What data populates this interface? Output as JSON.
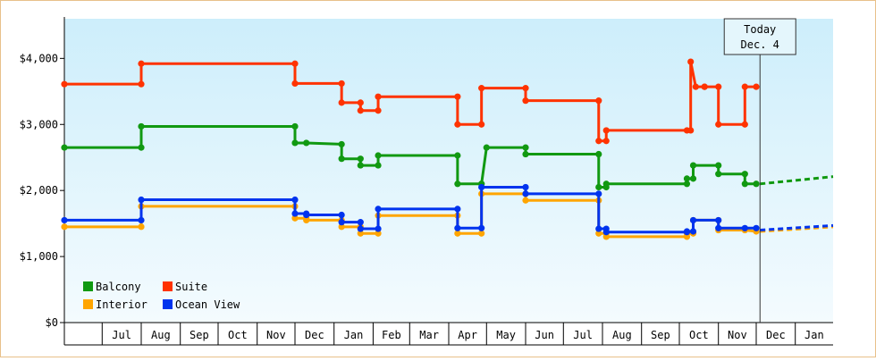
{
  "chart_data": {
    "type": "line",
    "title": "",
    "xlabel": "",
    "ylabel": "",
    "ylim": [
      0,
      4600
    ],
    "y_ticks": [
      {
        "value": 0,
        "label": "$0"
      },
      {
        "value": 1000,
        "label": "$1,000"
      },
      {
        "value": 2000,
        "label": "$2,000"
      },
      {
        "value": 3000,
        "label": "$3,000"
      },
      {
        "value": 4000,
        "label": "$4,000"
      }
    ],
    "x_domain": [
      "2023-06-01",
      "2025-01-31"
    ],
    "x_ticks": [
      {
        "date": "2023-07-01",
        "label": "Jul"
      },
      {
        "date": "2023-08-01",
        "label": "Aug"
      },
      {
        "date": "2023-09-01",
        "label": "Sep"
      },
      {
        "date": "2023-10-01",
        "label": "Oct"
      },
      {
        "date": "2023-11-01",
        "label": "Nov"
      },
      {
        "date": "2023-12-01",
        "label": "Dec"
      },
      {
        "date": "2024-01-01",
        "label": "Jan"
      },
      {
        "date": "2024-02-01",
        "label": "Feb"
      },
      {
        "date": "2024-03-01",
        "label": "Mar"
      },
      {
        "date": "2024-04-01",
        "label": "Apr"
      },
      {
        "date": "2024-05-01",
        "label": "May"
      },
      {
        "date": "2024-06-01",
        "label": "Jun"
      },
      {
        "date": "2024-07-01",
        "label": "Jul"
      },
      {
        "date": "2024-08-01",
        "label": "Aug"
      },
      {
        "date": "2024-09-01",
        "label": "Sep"
      },
      {
        "date": "2024-10-01",
        "label": "Oct"
      },
      {
        "date": "2024-11-01",
        "label": "Nov"
      },
      {
        "date": "2024-12-01",
        "label": "Dec"
      },
      {
        "date": "2025-01-01",
        "label": "Jan"
      }
    ],
    "today": {
      "date": "2024-12-04",
      "line1": "Today",
      "line2": "Dec. 4"
    },
    "grid": false,
    "legend_position": "bottom-left",
    "series": [
      {
        "name": "Suite",
        "color": "#ff3300",
        "points": [
          [
            "2023-06-01",
            3610
          ],
          [
            "2023-08-01",
            3610
          ],
          [
            "2023-08-01",
            3920
          ],
          [
            "2023-12-01",
            3920
          ],
          [
            "2023-12-01",
            3620
          ],
          [
            "2024-01-07",
            3620
          ],
          [
            "2024-01-07",
            3330
          ],
          [
            "2024-01-22",
            3330
          ],
          [
            "2024-01-22",
            3210
          ],
          [
            "2024-02-05",
            3210
          ],
          [
            "2024-02-05",
            3420
          ],
          [
            "2024-04-08",
            3420
          ],
          [
            "2024-04-08",
            3000
          ],
          [
            "2024-04-27",
            3000
          ],
          [
            "2024-04-27",
            3550
          ],
          [
            "2024-06-01",
            3550
          ],
          [
            "2024-06-01",
            3360
          ],
          [
            "2024-07-29",
            3360
          ],
          [
            "2024-07-29",
            2750
          ],
          [
            "2024-08-04",
            2750
          ],
          [
            "2024-08-04",
            2910
          ],
          [
            "2024-10-07",
            2910
          ],
          [
            "2024-10-10",
            2910
          ],
          [
            "2024-10-10",
            3950
          ],
          [
            "2024-10-14",
            3570
          ],
          [
            "2024-10-21",
            3570
          ],
          [
            "2024-10-21",
            3570
          ],
          [
            "2024-11-01",
            3570
          ],
          [
            "2024-11-01",
            3000
          ],
          [
            "2024-11-22",
            3000
          ],
          [
            "2024-11-22",
            3570
          ],
          [
            "2024-12-01",
            3570
          ]
        ],
        "projection": []
      },
      {
        "name": "Balcony",
        "color": "#119911",
        "points": [
          [
            "2023-06-01",
            2650
          ],
          [
            "2023-08-01",
            2650
          ],
          [
            "2023-08-01",
            2970
          ],
          [
            "2023-12-01",
            2970
          ],
          [
            "2023-12-01",
            2720
          ],
          [
            "2023-12-10",
            2720
          ],
          [
            "2024-01-07",
            2700
          ],
          [
            "2024-01-07",
            2480
          ],
          [
            "2024-01-22",
            2480
          ],
          [
            "2024-01-22",
            2380
          ],
          [
            "2024-02-05",
            2380
          ],
          [
            "2024-02-05",
            2530
          ],
          [
            "2024-04-08",
            2530
          ],
          [
            "2024-04-08",
            2100
          ],
          [
            "2024-04-27",
            2100
          ],
          [
            "2024-04-27",
            2100
          ],
          [
            "2024-05-01",
            2650
          ],
          [
            "2024-06-01",
            2650
          ],
          [
            "2024-06-01",
            2550
          ],
          [
            "2024-07-29",
            2550
          ],
          [
            "2024-07-29",
            2050
          ],
          [
            "2024-08-04",
            2050
          ],
          [
            "2024-08-04",
            2100
          ],
          [
            "2024-10-07",
            2100
          ],
          [
            "2024-10-07",
            2180
          ],
          [
            "2024-10-12",
            2180
          ],
          [
            "2024-10-12",
            2380
          ],
          [
            "2024-11-01",
            2380
          ],
          [
            "2024-11-01",
            2250
          ],
          [
            "2024-11-22",
            2250
          ],
          [
            "2024-11-22",
            2100
          ],
          [
            "2024-12-01",
            2100
          ]
        ],
        "projection": [
          [
            "2024-12-04",
            2100
          ],
          [
            "2025-01-31",
            2210
          ]
        ]
      },
      {
        "name": "Interior",
        "color": "#ffa500",
        "points": [
          [
            "2023-06-01",
            1450
          ],
          [
            "2023-08-01",
            1450
          ],
          [
            "2023-08-01",
            1760
          ],
          [
            "2023-12-01",
            1760
          ],
          [
            "2023-12-01",
            1580
          ],
          [
            "2023-12-10",
            1580
          ],
          [
            "2023-12-10",
            1550
          ],
          [
            "2024-01-07",
            1550
          ],
          [
            "2024-01-07",
            1450
          ],
          [
            "2024-01-22",
            1450
          ],
          [
            "2024-01-22",
            1350
          ],
          [
            "2024-02-05",
            1350
          ],
          [
            "2024-02-05",
            1620
          ],
          [
            "2024-04-08",
            1620
          ],
          [
            "2024-04-08",
            1350
          ],
          [
            "2024-04-27",
            1350
          ],
          [
            "2024-04-27",
            1950
          ],
          [
            "2024-06-01",
            1950
          ],
          [
            "2024-06-01",
            1850
          ],
          [
            "2024-07-29",
            1850
          ],
          [
            "2024-07-29",
            1350
          ],
          [
            "2024-08-04",
            1350
          ],
          [
            "2024-08-04",
            1300
          ],
          [
            "2024-10-07",
            1300
          ],
          [
            "2024-10-07",
            1350
          ],
          [
            "2024-10-12",
            1350
          ],
          [
            "2024-10-12",
            1550
          ],
          [
            "2024-11-01",
            1550
          ],
          [
            "2024-11-01",
            1400
          ],
          [
            "2024-11-22",
            1400
          ],
          [
            "2024-12-01",
            1380
          ]
        ],
        "projection": [
          [
            "2024-12-04",
            1380
          ],
          [
            "2025-01-31",
            1450
          ]
        ]
      },
      {
        "name": "Ocean View",
        "color": "#0033ee",
        "points": [
          [
            "2023-06-01",
            1550
          ],
          [
            "2023-08-01",
            1550
          ],
          [
            "2023-08-01",
            1860
          ],
          [
            "2023-12-01",
            1860
          ],
          [
            "2023-12-01",
            1650
          ],
          [
            "2023-12-10",
            1650
          ],
          [
            "2023-12-10",
            1630
          ],
          [
            "2024-01-07",
            1630
          ],
          [
            "2024-01-07",
            1520
          ],
          [
            "2024-01-22",
            1520
          ],
          [
            "2024-01-22",
            1420
          ],
          [
            "2024-02-05",
            1420
          ],
          [
            "2024-02-05",
            1720
          ],
          [
            "2024-04-08",
            1720
          ],
          [
            "2024-04-08",
            1430
          ],
          [
            "2024-04-27",
            1430
          ],
          [
            "2024-04-27",
            2050
          ],
          [
            "2024-06-01",
            2050
          ],
          [
            "2024-06-01",
            1950
          ],
          [
            "2024-07-29",
            1950
          ],
          [
            "2024-07-29",
            1420
          ],
          [
            "2024-08-04",
            1420
          ],
          [
            "2024-08-04",
            1370
          ],
          [
            "2024-10-07",
            1370
          ],
          [
            "2024-10-07",
            1380
          ],
          [
            "2024-10-12",
            1380
          ],
          [
            "2024-10-12",
            1550
          ],
          [
            "2024-11-01",
            1550
          ],
          [
            "2024-11-01",
            1430
          ],
          [
            "2024-11-22",
            1430
          ],
          [
            "2024-12-01",
            1430
          ]
        ],
        "projection": [
          [
            "2024-12-04",
            1400
          ],
          [
            "2025-01-31",
            1470
          ]
        ]
      }
    ],
    "legend": [
      {
        "name": "Balcony",
        "color": "#119911"
      },
      {
        "name": "Suite",
        "color": "#ff3300"
      },
      {
        "name": "Interior",
        "color": "#ffa500"
      },
      {
        "name": "Ocean View",
        "color": "#0033ee"
      }
    ]
  }
}
